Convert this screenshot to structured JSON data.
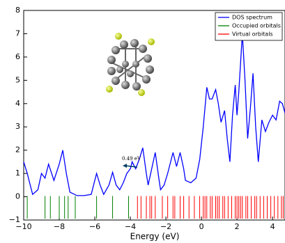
{
  "chart_data": {
    "type": "line",
    "xlabel": "Energy (eV)",
    "xlim": [
      -10,
      4.7
    ],
    "ylim": [
      -1,
      8
    ],
    "xticks": [
      {
        "value": -10,
        "label": "−10"
      },
      {
        "value": -8,
        "label": "−8"
      },
      {
        "value": -6,
        "label": "−6"
      },
      {
        "value": -4,
        "label": "−4"
      },
      {
        "value": -2,
        "label": "−2"
      },
      0,
      2,
      4
    ],
    "yticks": [
      {
        "value": -1,
        "label": "−1"
      },
      0,
      1,
      2,
      3,
      4,
      5,
      6,
      7,
      8
    ],
    "legend": "upper right",
    "annotations": [
      "0.49 eV"
    ],
    "series": [
      {
        "name": "DOS spectrum",
        "color": "#0000ff",
        "x": [
          -10,
          -9.8,
          -9.5,
          -9.2,
          -9.0,
          -8.8,
          -8.6,
          -8.3,
          -8.0,
          -7.8,
          -7.6,
          -7.4,
          -7.0,
          -6.6,
          -6.2,
          -5.9,
          -5.7,
          -5.5,
          -5.2,
          -5.0,
          -4.8,
          -4.6,
          -4.4,
          -4.2,
          -4.0,
          -3.9,
          -3.7,
          -3.5,
          -3.3,
          -3.1,
          -3.0,
          -2.8,
          -2.6,
          -2.4,
          -2.3,
          -2.1,
          -1.9,
          -1.6,
          -1.4,
          -1.2,
          -1.0,
          -0.9,
          -0.6,
          -0.3,
          -0.1,
          0.1,
          0.3,
          0.45,
          0.6,
          0.8,
          0.95,
          1.1,
          1.3,
          1.45,
          1.6,
          1.75,
          1.9,
          2.0,
          2.1,
          2.3,
          2.45,
          2.6,
          2.75,
          2.9,
          3.05,
          3.2,
          3.4,
          3.6,
          3.8,
          4.0,
          4.2,
          4.4,
          4.55,
          4.7
        ],
        "values": [
          1.5,
          1.0,
          0.1,
          0.3,
          1.0,
          0.8,
          1.4,
          0.7,
          1.4,
          2.0,
          1.0,
          0.2,
          0.05,
          0.05,
          0.1,
          1.0,
          0.5,
          0.1,
          0.5,
          1.05,
          0.5,
          0.3,
          0.6,
          1.0,
          1.2,
          1.5,
          1.2,
          1.6,
          2.1,
          1.0,
          0.5,
          1.2,
          1.9,
          0.8,
          0.3,
          0.5,
          1.0,
          1.9,
          1.3,
          1.9,
          1.2,
          0.7,
          0.6,
          0.8,
          1.6,
          3.0,
          4.7,
          4.2,
          4.2,
          4.6,
          4.0,
          3.2,
          3.7,
          2.5,
          1.5,
          3.5,
          4.8,
          3.5,
          4.5,
          7.0,
          5.0,
          2.5,
          3.8,
          5.3,
          3.0,
          1.5,
          3.3,
          2.8,
          3.2,
          3.5,
          3.3,
          4.1,
          4.0,
          3.6
        ]
      },
      {
        "name": "Occupied orbitals",
        "color": "#008000",
        "x": [
          -9.8,
          -8.8,
          -8.5,
          -8.0,
          -7.7,
          -7.5,
          -7.1,
          -5.9,
          -5.0,
          -4.1
        ]
      },
      {
        "name": "Virtual orbitals",
        "color": "#ff0000",
        "x": [
          -3.6,
          -3.4,
          -3.1,
          -2.9,
          -2.8,
          -2.6,
          -2.2,
          -1.9,
          -1.6,
          -1.5,
          -1.2,
          -1.0,
          -0.7,
          -0.4,
          -0.1,
          0.1,
          0.2,
          0.3,
          0.5,
          0.6,
          0.8,
          0.9,
          1.0,
          1.2,
          1.3,
          1.5,
          1.7,
          1.9,
          2.0,
          2.1,
          2.2,
          2.3,
          2.5,
          2.6,
          2.8,
          3.0,
          3.1,
          3.3,
          3.5,
          3.7,
          3.9,
          4.1,
          4.3,
          4.5,
          4.6
        ]
      }
    ]
  }
}
